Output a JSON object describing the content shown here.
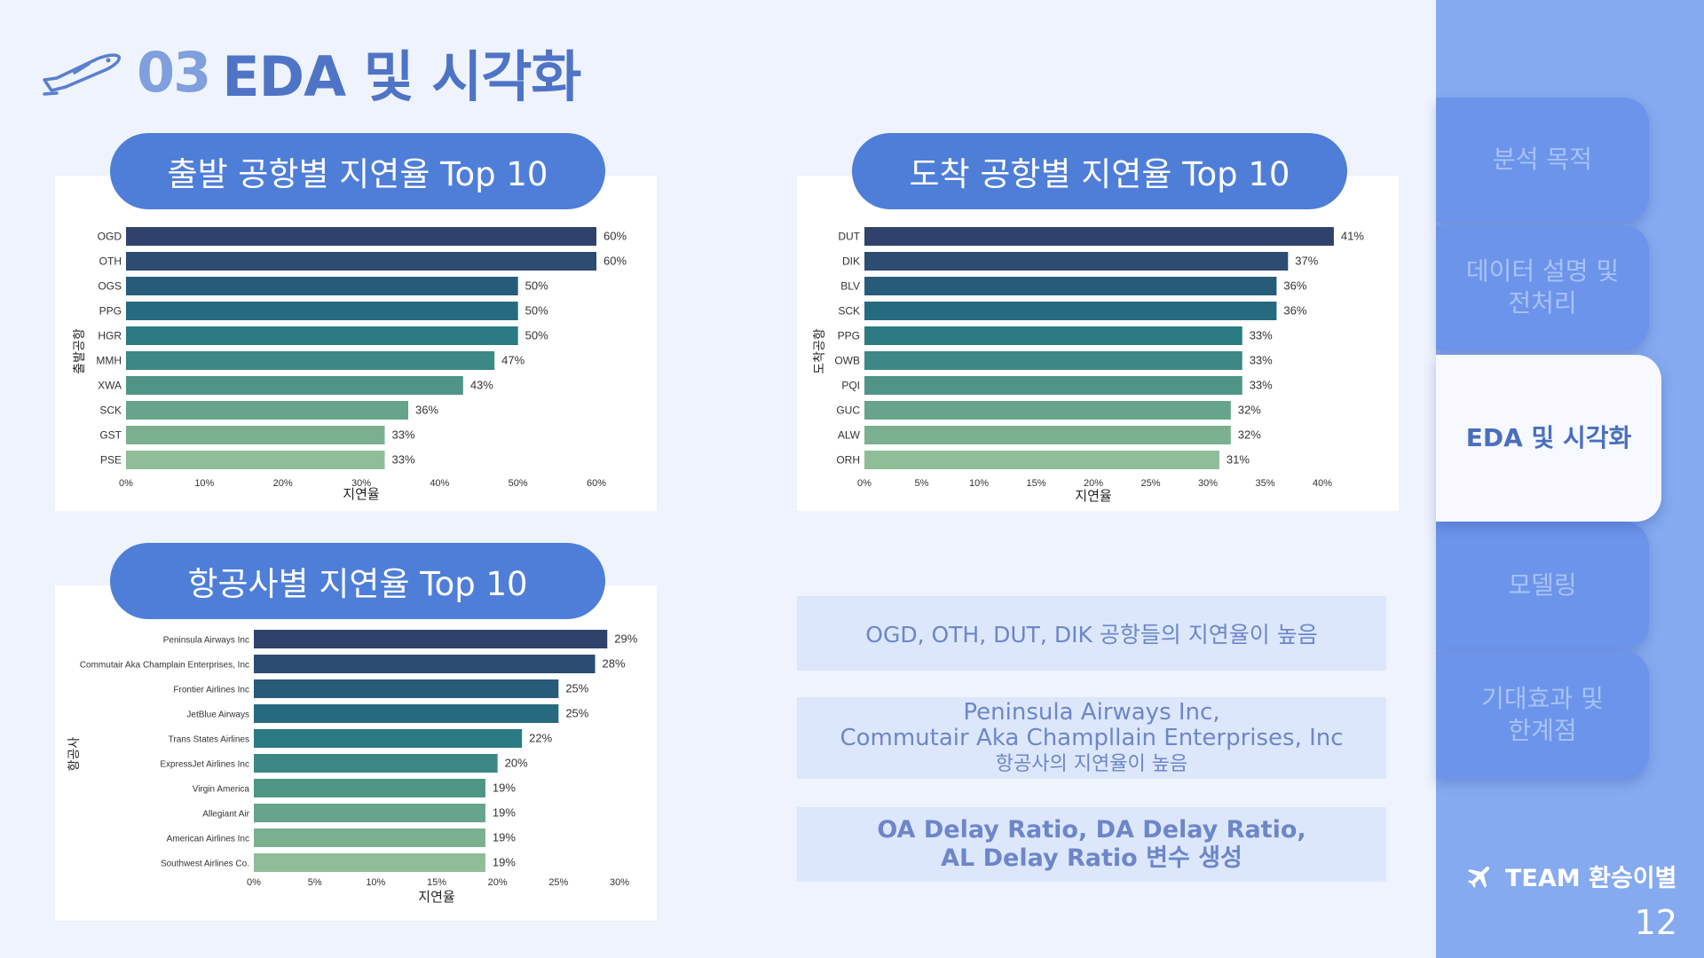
{
  "header": {
    "number": "03",
    "title": "EDA 및 시각화"
  },
  "charts": {
    "dep": {
      "title": "출발 공항별 지연율 Top 10"
    },
    "arr": {
      "title": "도착 공항별 지연율 Top 10"
    },
    "air": {
      "title": "항공사별 지연율 Top 10"
    }
  },
  "chart_data": [
    {
      "type": "bar",
      "orientation": "horizontal",
      "xlabel": "지연율",
      "ylabel": "출발공항",
      "categories": [
        "OGD",
        "OTH",
        "OGS",
        "PPG",
        "HGR",
        "MMH",
        "XWA",
        "SCK",
        "GST",
        "PSE"
      ],
      "values": [
        0.6,
        0.6,
        0.5,
        0.5,
        0.5,
        0.47,
        0.43,
        0.36,
        0.33,
        0.33
      ],
      "value_labels": [
        "60%",
        "60%",
        "50%",
        "50%",
        "50%",
        "47%",
        "43%",
        "36%",
        "33%",
        "33%"
      ],
      "xticks": [
        "0%",
        "10%",
        "20%",
        "30%",
        "40%",
        "50%",
        "60%"
      ],
      "xlim": [
        0,
        0.6
      ]
    },
    {
      "type": "bar",
      "orientation": "horizontal",
      "xlabel": "지연율",
      "ylabel": "도착공항",
      "categories": [
        "DUT",
        "DIK",
        "BLV",
        "SCK",
        "PPG",
        "OWB",
        "PQI",
        "GUC",
        "ALW",
        "ORH"
      ],
      "values": [
        0.41,
        0.37,
        0.36,
        0.36,
        0.33,
        0.33,
        0.33,
        0.32,
        0.32,
        0.31
      ],
      "value_labels": [
        "41%",
        "37%",
        "36%",
        "36%",
        "33%",
        "33%",
        "33%",
        "32%",
        "32%",
        "31%"
      ],
      "xticks": [
        "0%",
        "5%",
        "10%",
        "15%",
        "20%",
        "25%",
        "30%",
        "35%",
        "40%"
      ],
      "xlim": [
        0,
        0.4
      ]
    },
    {
      "type": "bar",
      "orientation": "horizontal",
      "xlabel": "지연율",
      "ylabel": "항공사",
      "categories": [
        "Peninsula Airways Inc",
        "Commutair Aka Champlain Enterprises, Inc",
        "Frontier Airlines Inc",
        "JetBlue Airways",
        "Trans States Airlines",
        "ExpressJet Airlines Inc",
        "Virgin America",
        "Allegiant Air",
        "American Airlines Inc",
        "Southwest Airlines Co."
      ],
      "values": [
        0.29,
        0.28,
        0.25,
        0.25,
        0.22,
        0.2,
        0.19,
        0.19,
        0.19,
        0.19
      ],
      "value_labels": [
        "29%",
        "28%",
        "25%",
        "25%",
        "22%",
        "20%",
        "19%",
        "19%",
        "19%",
        "19%"
      ],
      "xticks": [
        "0%",
        "5%",
        "10%",
        "15%",
        "20%",
        "25%",
        "30%"
      ],
      "xlim": [
        0,
        0.3
      ]
    }
  ],
  "notes": {
    "n1": "OGD, OTH, DUT, DIK 공항들의 지연율이 높음",
    "n2a": "Peninsula Airways Inc,",
    "n2b": "Commutair Aka Champllain Enterprises, Inc",
    "n2c": "항공사의 지연율이 높음",
    "n3a": "OA Delay Ratio, DA Delay Ratio,",
    "n3b": "AL Delay Ratio 변수 생성"
  },
  "sidebar": {
    "items": [
      "분석 목적",
      "데이터 설명 및\n전처리",
      "EDA 및 시각화",
      "모델링",
      "기대효과 및\n한계점"
    ],
    "team": "TEAM 환승이별",
    "page": "12"
  },
  "colors": {
    "bars": [
      "#30426c",
      "#2c4c72",
      "#275b7a",
      "#266a80",
      "#2b7a84",
      "#3b8886",
      "#4f9587",
      "#66a48b",
      "#7bb08f",
      "#8fbd98"
    ],
    "accent": "#4f7ed8",
    "sidebar": "#86aaf0"
  }
}
